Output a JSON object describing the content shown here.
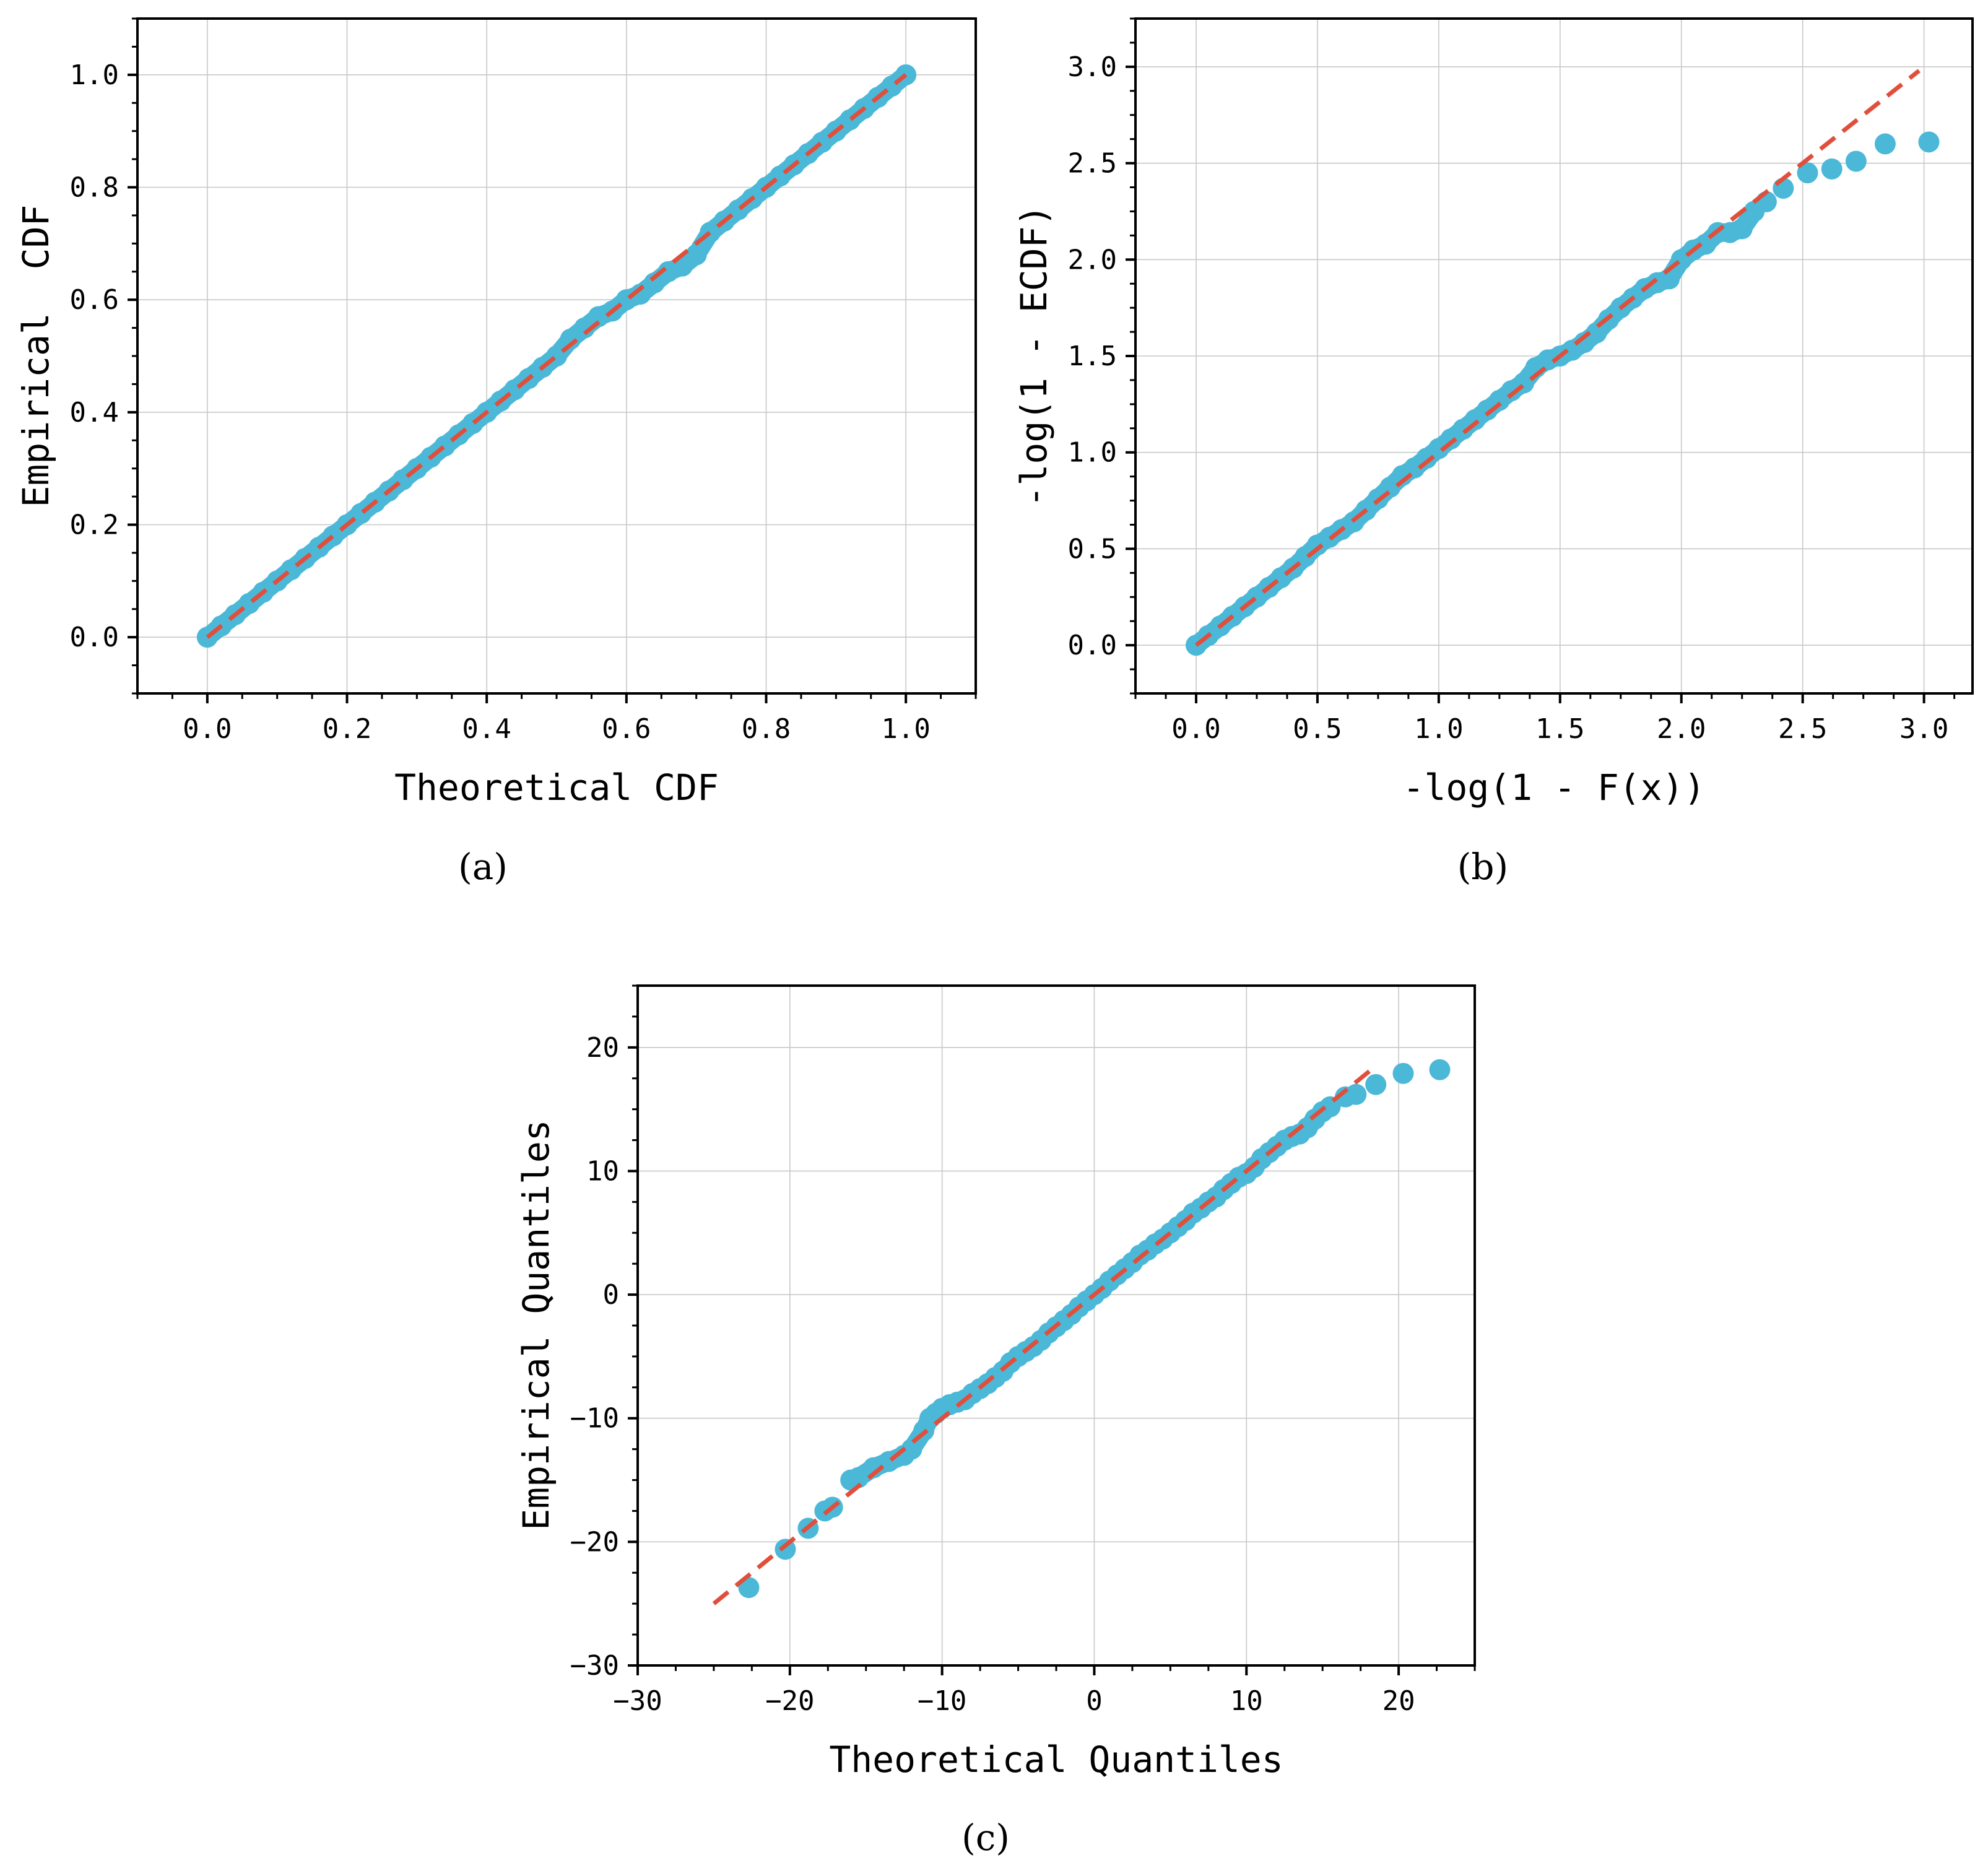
{
  "figure": {
    "colors": {
      "points": "#4bb8d8",
      "reference_line": "#e04f3c",
      "grid": "#c8c8c8",
      "axis": "#000000"
    }
  },
  "chart_data": [
    {
      "id": "a",
      "type": "scatter",
      "panel_label": "(a)",
      "xlabel": "Theoretical CDF",
      "ylabel": "Empirical  CDF",
      "xlim": [
        -0.1,
        1.1
      ],
      "ylim": [
        -0.1,
        1.1
      ],
      "xticks": [
        0.0,
        0.2,
        0.4,
        0.6,
        0.8,
        1.0
      ],
      "xtick_labels": [
        "0.0",
        "0.2",
        "0.4",
        "0.6",
        "0.8",
        "1.0"
      ],
      "yticks": [
        0.0,
        0.2,
        0.4,
        0.6,
        0.8,
        1.0
      ],
      "ytick_labels": [
        "0.0",
        "0.2",
        "0.4",
        "0.6",
        "0.8",
        "1.0"
      ],
      "grid": true,
      "reference_line": {
        "x": [
          0.0,
          1.0
        ],
        "y": [
          0.0,
          1.0
        ]
      },
      "points": [
        [
          0.0,
          0.0
        ],
        [
          0.02,
          0.02
        ],
        [
          0.04,
          0.04
        ],
        [
          0.06,
          0.06
        ],
        [
          0.08,
          0.08
        ],
        [
          0.1,
          0.1
        ],
        [
          0.12,
          0.12
        ],
        [
          0.14,
          0.14
        ],
        [
          0.16,
          0.16
        ],
        [
          0.18,
          0.18
        ],
        [
          0.2,
          0.2
        ],
        [
          0.22,
          0.22
        ],
        [
          0.24,
          0.24
        ],
        [
          0.26,
          0.26
        ],
        [
          0.28,
          0.28
        ],
        [
          0.3,
          0.3
        ],
        [
          0.32,
          0.32
        ],
        [
          0.34,
          0.34
        ],
        [
          0.36,
          0.36
        ],
        [
          0.38,
          0.38
        ],
        [
          0.4,
          0.4
        ],
        [
          0.42,
          0.42
        ],
        [
          0.44,
          0.44
        ],
        [
          0.46,
          0.46
        ],
        [
          0.48,
          0.48
        ],
        [
          0.5,
          0.5
        ],
        [
          0.52,
          0.53
        ],
        [
          0.54,
          0.55
        ],
        [
          0.56,
          0.57
        ],
        [
          0.58,
          0.58
        ],
        [
          0.6,
          0.6
        ],
        [
          0.62,
          0.61
        ],
        [
          0.64,
          0.63
        ],
        [
          0.66,
          0.65
        ],
        [
          0.68,
          0.66
        ],
        [
          0.7,
          0.68
        ],
        [
          0.72,
          0.72
        ],
        [
          0.74,
          0.74
        ],
        [
          0.76,
          0.76
        ],
        [
          0.78,
          0.78
        ],
        [
          0.8,
          0.8
        ],
        [
          0.82,
          0.82
        ],
        [
          0.84,
          0.84
        ],
        [
          0.86,
          0.86
        ],
        [
          0.88,
          0.88
        ],
        [
          0.9,
          0.9
        ],
        [
          0.92,
          0.92
        ],
        [
          0.94,
          0.94
        ],
        [
          0.96,
          0.96
        ],
        [
          0.98,
          0.98
        ],
        [
          1.0,
          1.0
        ]
      ]
    },
    {
      "id": "b",
      "type": "scatter",
      "panel_label": "(b)",
      "xlabel": "-log(1 - F(x))",
      "ylabel": "-log(1 - ECDF)",
      "xlim": [
        -0.25,
        3.2
      ],
      "ylim": [
        -0.25,
        3.25
      ],
      "xticks": [
        0.0,
        0.5,
        1.0,
        1.5,
        2.0,
        2.5,
        3.0
      ],
      "xtick_labels": [
        "0.0",
        "0.5",
        "1.0",
        "1.5",
        "2.0",
        "2.5",
        "3.0"
      ],
      "yticks": [
        0.0,
        0.5,
        1.0,
        1.5,
        2.0,
        2.5,
        3.0
      ],
      "ytick_labels": [
        "0.0",
        "0.5",
        "1.0",
        "1.5",
        "2.0",
        "2.5",
        "3.0"
      ],
      "grid": true,
      "reference_line": {
        "x": [
          0.0,
          2.98
        ],
        "y": [
          0.0,
          2.98
        ]
      },
      "points": [
        [
          0.0,
          0.0
        ],
        [
          0.05,
          0.05
        ],
        [
          0.1,
          0.1
        ],
        [
          0.15,
          0.15
        ],
        [
          0.2,
          0.2
        ],
        [
          0.25,
          0.25
        ],
        [
          0.3,
          0.3
        ],
        [
          0.35,
          0.35
        ],
        [
          0.4,
          0.4
        ],
        [
          0.45,
          0.46
        ],
        [
          0.5,
          0.52
        ],
        [
          0.55,
          0.56
        ],
        [
          0.6,
          0.6
        ],
        [
          0.65,
          0.64
        ],
        [
          0.7,
          0.7
        ],
        [
          0.75,
          0.76
        ],
        [
          0.8,
          0.82
        ],
        [
          0.85,
          0.88
        ],
        [
          0.9,
          0.92
        ],
        [
          0.95,
          0.97
        ],
        [
          1.0,
          1.02
        ],
        [
          1.05,
          1.07
        ],
        [
          1.1,
          1.12
        ],
        [
          1.15,
          1.17
        ],
        [
          1.2,
          1.22
        ],
        [
          1.25,
          1.27
        ],
        [
          1.3,
          1.32
        ],
        [
          1.35,
          1.36
        ],
        [
          1.4,
          1.44
        ],
        [
          1.45,
          1.48
        ],
        [
          1.5,
          1.5
        ],
        [
          1.55,
          1.53
        ],
        [
          1.6,
          1.57
        ],
        [
          1.65,
          1.62
        ],
        [
          1.7,
          1.69
        ],
        [
          1.75,
          1.75
        ],
        [
          1.8,
          1.8
        ],
        [
          1.85,
          1.85
        ],
        [
          1.9,
          1.88
        ],
        [
          1.95,
          1.9
        ],
        [
          2.0,
          2.0
        ],
        [
          2.05,
          2.05
        ],
        [
          2.1,
          2.08
        ],
        [
          2.15,
          2.14
        ],
        [
          2.2,
          2.14
        ],
        [
          2.25,
          2.16
        ],
        [
          2.3,
          2.25
        ],
        [
          2.35,
          2.3
        ],
        [
          2.42,
          2.37
        ],
        [
          2.52,
          2.45
        ],
        [
          2.62,
          2.47
        ],
        [
          2.72,
          2.51
        ],
        [
          2.84,
          2.6
        ],
        [
          3.02,
          2.61
        ]
      ]
    },
    {
      "id": "c",
      "type": "scatter",
      "panel_label": "(c)",
      "xlabel": "Theoretical Quantiles",
      "ylabel": "Empirical Quantiles",
      "xlim": [
        -30,
        25
      ],
      "ylim": [
        -30,
        25
      ],
      "xticks": [
        -30,
        -20,
        -10,
        0,
        10,
        20
      ],
      "xtick_labels": [
        "−30",
        "−20",
        "−10",
        "0",
        "10",
        "20"
      ],
      "yticks": [
        -30,
        -20,
        -10,
        0,
        10,
        20
      ],
      "ytick_labels": [
        "−30",
        "−20",
        "−10",
        "0",
        "10",
        "20"
      ],
      "grid": true,
      "reference_line": {
        "x": [
          -25,
          18.5
        ],
        "y": [
          -25,
          18.5
        ]
      },
      "points": [
        [
          -22.7,
          -23.7
        ],
        [
          -20.3,
          -20.6
        ],
        [
          -18.8,
          -18.9
        ],
        [
          -17.7,
          -17.5
        ],
        [
          -17.2,
          -17.2
        ],
        [
          -16,
          -15
        ],
        [
          -15.5,
          -14.8
        ],
        [
          -14.5,
          -14
        ],
        [
          -13.5,
          -13.5
        ],
        [
          -12.5,
          -13
        ],
        [
          -12,
          -12.5
        ],
        [
          -11.2,
          -11
        ],
        [
          -10.8,
          -10
        ],
        [
          -10.4,
          -9.6
        ],
        [
          -10,
          -9.2
        ],
        [
          -9.5,
          -8.9
        ],
        [
          -9,
          -8.7
        ],
        [
          -8.5,
          -8.5
        ],
        [
          -8,
          -8
        ],
        [
          -7.5,
          -7.6
        ],
        [
          -7,
          -7.2
        ],
        [
          -6.5,
          -6.7
        ],
        [
          -6,
          -6.2
        ],
        [
          -5.5,
          -5.5
        ],
        [
          -5,
          -5
        ],
        [
          -4.5,
          -4.6
        ],
        [
          -4,
          -4.2
        ],
        [
          -3.5,
          -3.7
        ],
        [
          -3,
          -3.1
        ],
        [
          -2.5,
          -2.6
        ],
        [
          -2,
          -2.1
        ],
        [
          -1.5,
          -1.6
        ],
        [
          -1,
          -1
        ],
        [
          -0.5,
          -0.5
        ],
        [
          0,
          0
        ],
        [
          0.5,
          0.5
        ],
        [
          1,
          1.1
        ],
        [
          1.5,
          1.6
        ],
        [
          2,
          2.1
        ],
        [
          2.5,
          2.6
        ],
        [
          3,
          3.2
        ],
        [
          3.5,
          3.6
        ],
        [
          4,
          4.1
        ],
        [
          4.5,
          4.5
        ],
        [
          5,
          5
        ],
        [
          5.5,
          5.5
        ],
        [
          6,
          6
        ],
        [
          6.5,
          6.6
        ],
        [
          7,
          7
        ],
        [
          7.5,
          7.5
        ],
        [
          8,
          7.9
        ],
        [
          8.5,
          8.5
        ],
        [
          9,
          9
        ],
        [
          9.5,
          9.5
        ],
        [
          10,
          9.8
        ],
        [
          10.5,
          10.3
        ],
        [
          11,
          11
        ],
        [
          11.5,
          11.5
        ],
        [
          12,
          12
        ],
        [
          12.5,
          12.5
        ],
        [
          13,
          12.8
        ],
        [
          13.5,
          13
        ],
        [
          14,
          13.5
        ],
        [
          14.5,
          14.2
        ],
        [
          15,
          14.8
        ],
        [
          15.5,
          15.2
        ],
        [
          16.5,
          16
        ],
        [
          17.2,
          16.2
        ],
        [
          18.5,
          17
        ],
        [
          20.3,
          17.9
        ],
        [
          22.7,
          18.2
        ]
      ]
    }
  ]
}
